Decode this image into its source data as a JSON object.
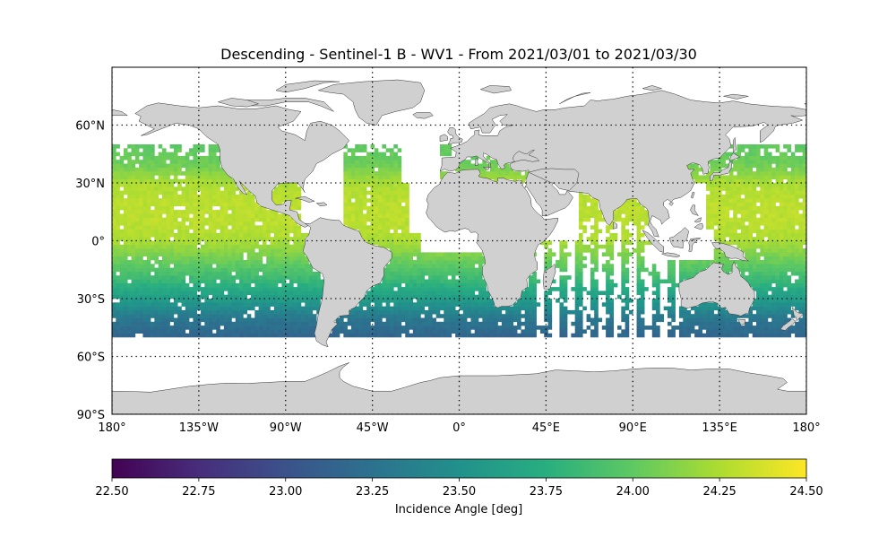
{
  "title": "Descending - Sentinel-1 B - WV1 - From 2021/03/01 to 2021/03/30",
  "map": {
    "projection": "plate-carree",
    "lon_range": [
      -180,
      180
    ],
    "lat_range": [
      -90,
      90
    ],
    "lon_ticks": [
      {
        "value": -180,
        "label": "180°"
      },
      {
        "value": -135,
        "label": "135°W"
      },
      {
        "value": -90,
        "label": "90°W"
      },
      {
        "value": -45,
        "label": "45°W"
      },
      {
        "value": 0,
        "label": "0°"
      },
      {
        "value": 45,
        "label": "45°E"
      },
      {
        "value": 90,
        "label": "90°E"
      },
      {
        "value": 135,
        "label": "135°E"
      },
      {
        "value": 180,
        "label": "180°"
      }
    ],
    "lat_ticks": [
      {
        "value": 60,
        "label": "60°N"
      },
      {
        "value": 30,
        "label": "30°N"
      },
      {
        "value": 0,
        "label": "0°"
      },
      {
        "value": -30,
        "label": "30°S"
      },
      {
        "value": -60,
        "label": "60°S"
      },
      {
        "value": -90,
        "label": "90°S"
      }
    ],
    "gridlines": "dotted",
    "land_color": "#d0d0d0",
    "coastline_color": "#333333"
  },
  "colorbar": {
    "label": "Incidence Angle [deg]",
    "colormap": "viridis",
    "range": [
      22.5,
      24.5
    ],
    "ticks": [
      "22.50",
      "22.75",
      "23.00",
      "23.25",
      "23.50",
      "23.75",
      "24.00",
      "24.25",
      "24.50"
    ]
  },
  "chart_data": {
    "type": "heatmap",
    "title": "Descending - Sentinel-1 B - WV1 - From 2021/03/01 to 2021/03/30",
    "xlabel": "",
    "ylabel": "",
    "colorbar_label": "Incidence Angle [deg]",
    "value_range": [
      22.5,
      24.5
    ],
    "coverage_lat_range": [
      -50,
      50
    ],
    "value_vs_latitude": [
      {
        "lat": 50,
        "value": 24.0
      },
      {
        "lat": 40,
        "value": 24.05
      },
      {
        "lat": 30,
        "value": 24.25
      },
      {
        "lat": 20,
        "value": 24.3
      },
      {
        "lat": 10,
        "value": 24.3
      },
      {
        "lat": 0,
        "value": 24.25
      },
      {
        "lat": -10,
        "value": 24.05
      },
      {
        "lat": -20,
        "value": 23.85
      },
      {
        "lat": -30,
        "value": 23.6
      },
      {
        "lat": -40,
        "value": 23.3
      },
      {
        "lat": -50,
        "value": 23.15
      }
    ]
  }
}
